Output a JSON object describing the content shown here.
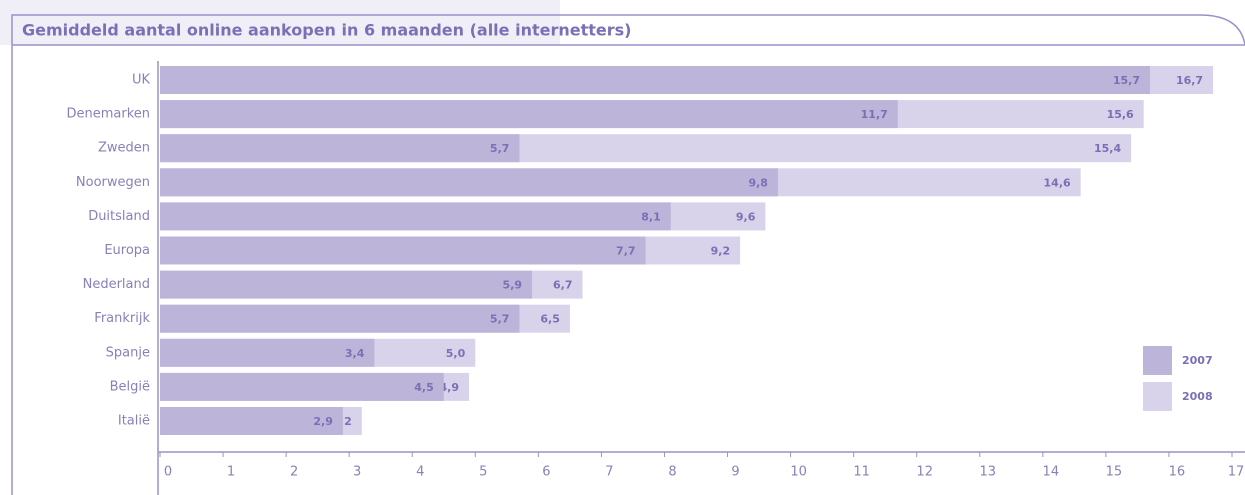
{
  "chart_data": {
    "type": "overlapping-bar",
    "title": "Gemiddeld aantal online aankopen in 6 maanden (alle internetters)",
    "categories": [
      "UK",
      "Denemarken",
      "Zweden",
      "Noorwegen",
      "Duitsland",
      "Europa",
      "Nederland",
      "Frankrijk",
      "Spanje",
      "België",
      "Italië"
    ],
    "series": [
      {
        "name": "2007",
        "color": "#bdb5d9",
        "values": [
          15.7,
          11.7,
          5.7,
          9.8,
          8.1,
          7.7,
          5.9,
          5.7,
          3.4,
          4.5,
          2.9
        ],
        "value_labels": [
          "15,7",
          "11,7",
          "5,7",
          "9,8",
          "8,1",
          "7,7",
          "5,9",
          "5,7",
          "3,4",
          "4,5",
          "2,9"
        ]
      },
      {
        "name": "2008",
        "color": "#d8d3ea",
        "values": [
          16.7,
          15.6,
          15.4,
          14.6,
          9.6,
          9.2,
          6.7,
          6.5,
          5.0,
          4.9,
          3.2
        ],
        "value_labels": [
          "16,7",
          "15,6",
          "15,4",
          "14,6",
          "9,6",
          "9,2",
          "6,7",
          "6,5",
          "5,0",
          "4,9",
          "3,2"
        ]
      }
    ],
    "xlim": [
      0,
      17
    ],
    "xticks": [
      0,
      1,
      2,
      3,
      4,
      5,
      6,
      7,
      8,
      9,
      10,
      11,
      12,
      13,
      14,
      15,
      16,
      17
    ],
    "legend": "right"
  }
}
